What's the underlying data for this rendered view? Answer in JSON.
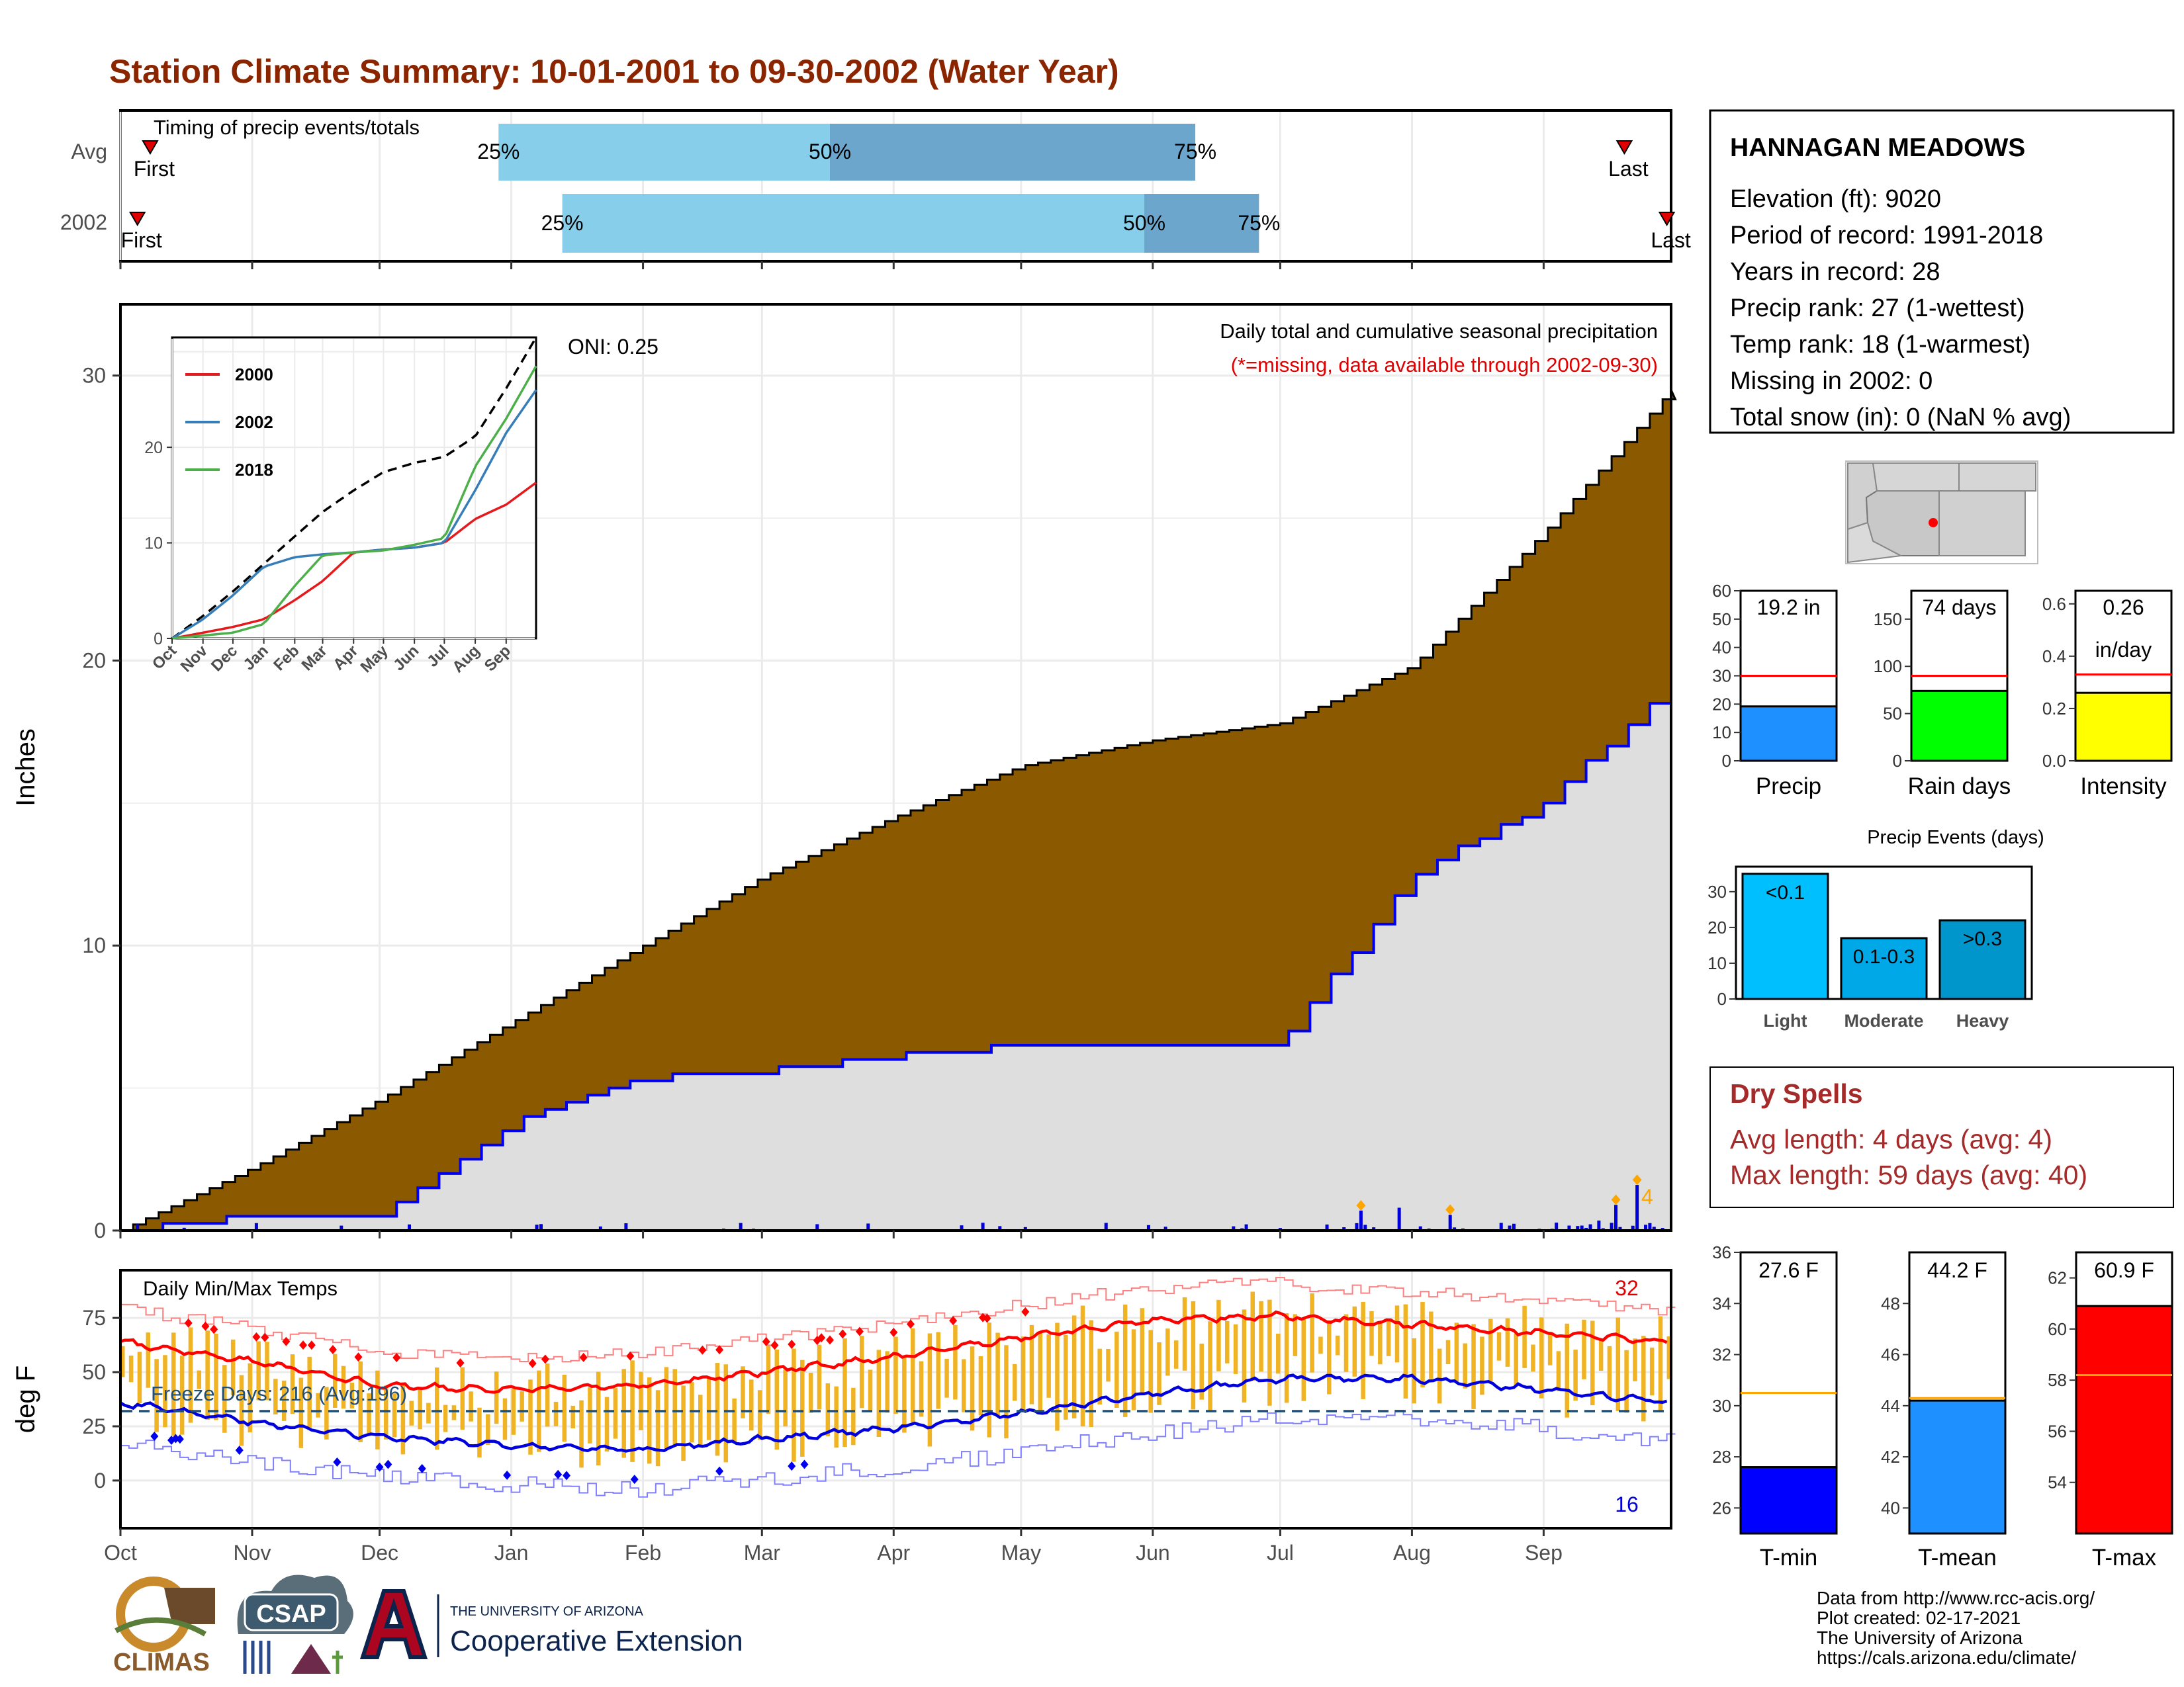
{
  "title": "Station Climate Summary: 10-01-2001 to 09-30-2002 (Water Year)",
  "colors": {
    "title": "#8B2500",
    "cumulative_fill": "#8B5A00",
    "avg_fill": "#DEDEDE",
    "blue_line": "#0000EE",
    "timing_light": "#87CEEB",
    "timing_dark": "#6CA6CD",
    "temp_bar": "#F0B323",
    "dry_spell_text": "#A52A2A"
  },
  "timing": {
    "title": "Timing of precip events/totals",
    "rows": [
      {
        "label": "Avg",
        "first_label": "First",
        "last_label": "Last",
        "first": 7,
        "p25": 89,
        "p50": 167,
        "p75": 253,
        "last": 354
      },
      {
        "label": "2002",
        "first_label": "First",
        "last_label": "Last",
        "first": 4,
        "p25": 104,
        "p50": 241,
        "p75": 268,
        "last": 364
      }
    ],
    "pct_labels": [
      "25%",
      "50%",
      "75%"
    ]
  },
  "precip_panel": {
    "ylabel": "Inches",
    "subtitle": "Daily total and cumulative seasonal precipitation",
    "missing_note": "(*=missing, data available through 2002-09-30)",
    "oni_label": "ONI: 0.25",
    "event_count_label": "4",
    "y_ticks": [
      "0",
      "10",
      "20",
      "30"
    ]
  },
  "inset": {
    "legend": [
      "2000",
      "2002",
      "2018"
    ],
    "legend_colors": [
      "#E41A1C",
      "#377EB8",
      "#4DAF4A"
    ],
    "y_ticks": [
      "0",
      "10",
      "20"
    ],
    "months": [
      "Oct",
      "Nov",
      "Dec",
      "Jan",
      "Feb",
      "Mar",
      "Apr",
      "May",
      "Jun",
      "Jul",
      "Aug",
      "Sep"
    ]
  },
  "temp_panel": {
    "title": "Daily Min/Max Temps",
    "ylabel": "deg F",
    "freeze_label": "Freeze Days: 216 (Avg:196)",
    "count_hot": "32",
    "count_cold": "16",
    "y_ticks": [
      "0",
      "25",
      "50",
      "75"
    ]
  },
  "months": [
    "Oct",
    "Nov",
    "Dec",
    "Jan",
    "Feb",
    "Mar",
    "Apr",
    "May",
    "Jun",
    "Jul",
    "Aug",
    "Sep"
  ],
  "station": {
    "name": "HANNAGAN MEADOWS",
    "lines": [
      "Elevation (ft): 9020",
      "Period of record: 1991-2018",
      "Years in record: 28",
      "Precip rank: 27 (1-wettest)",
      "Temp rank: 18 (1-warmest)",
      "Missing in 2002: 0",
      "Total snow (in): 0 (NaN % avg)"
    ]
  },
  "mini_bars": [
    {
      "label": "Precip",
      "value_text": "19.2 in",
      "value": 19.2,
      "avg": 30,
      "ymax": 60,
      "ticks": [
        "0",
        "10",
        "20",
        "30",
        "40",
        "50",
        "60"
      ],
      "color": "#1E90FF"
    },
    {
      "label": "Rain days",
      "value_text": "74 days",
      "value": 74,
      "avg": 90,
      "ymax": 180,
      "ticks": [
        "0",
        "50",
        "100",
        "150"
      ],
      "color": "#00FF00"
    },
    {
      "label": "Intensity",
      "value_text": "0.26",
      "value_text2": "in/day",
      "value": 0.26,
      "avg": 0.33,
      "ymax": 0.65,
      "ticks": [
        "0.0",
        "0.2",
        "0.4",
        "0.6"
      ],
      "color": "#FFFF00"
    }
  ],
  "events": {
    "title": "Precip Events (days)",
    "ticks": [
      "0",
      "10",
      "20",
      "30"
    ],
    "bars": [
      {
        "label": "Light",
        "tag": "<0.1",
        "value": 35,
        "color": "#00BFFF"
      },
      {
        "label": "Moderate",
        "tag": "0.1-0.3",
        "value": 17,
        "color": "#00A8E8"
      },
      {
        "label": "Heavy",
        "tag": ">0.3",
        "value": 22,
        "color": "#0096CC"
      }
    ]
  },
  "dry_spells": {
    "title": "Dry Spells",
    "avg_line": "Avg length: 4 days (avg: 4)",
    "max_line": "Max length: 59 days (avg: 40)"
  },
  "temp_bars": [
    {
      "label": "T-min",
      "value_text": "27.6 F",
      "value": 27.6,
      "avg": 30.5,
      "ymin": 25,
      "ymax": 36,
      "ticks": [
        "26",
        "28",
        "30",
        "32",
        "34",
        "36"
      ],
      "color": "#0000FF"
    },
    {
      "label": "T-mean",
      "value_text": "44.2 F",
      "value": 44.2,
      "avg": 44.3,
      "ymin": 39,
      "ymax": 50,
      "ticks": [
        "40",
        "42",
        "44",
        "46",
        "48"
      ],
      "color": "#1E90FF"
    },
    {
      "label": "T-max",
      "value_text": "60.9 F",
      "value": 60.9,
      "avg": 58.2,
      "ymin": 52,
      "ymax": 63,
      "ticks": [
        "54",
        "56",
        "58",
        "60",
        "62"
      ],
      "color": "#FF0000"
    }
  ],
  "credits": [
    "Data from http://www.rcc-acis.org/",
    "Plot created: 02-17-2021",
    "The University of Arizona",
    "https://cals.arizona.edu/climate/"
  ],
  "logos": {
    "climas": "CLIMAS",
    "csap": "CSAP",
    "ua_small": "THE UNIVERSITY OF ARIZONA",
    "coop": "Cooperative Extension"
  },
  "chart_data": [
    {
      "type": "area",
      "title": "Daily total and cumulative seasonal precipitation",
      "ylabel": "Inches",
      "ylim": [
        0,
        32.5
      ],
      "x": [
        "Oct",
        "Nov",
        "Dec",
        "Jan",
        "Feb",
        "Mar",
        "Apr",
        "May",
        "Jun",
        "Jul",
        "Aug",
        "Sep",
        "end"
      ],
      "series": [
        {
          "name": "avg cumulative",
          "values": [
            0,
            2.2,
            4.6,
            7.3,
            10.0,
            12.4,
            14.5,
            16.3,
            17.2,
            17.8,
            19.8,
            24.5,
            29.5
          ]
        },
        {
          "name": "2002 cumulative",
          "values": [
            0,
            0.5,
            0.6,
            3.8,
            5.3,
            5.6,
            6.1,
            6.5,
            6.5,
            6.6,
            12.5,
            15.0,
            19.2
          ]
        }
      ]
    },
    {
      "type": "line",
      "title": "Daily Min/Max Temps",
      "ylabel": "deg F",
      "x": [
        "Oct",
        "Nov",
        "Dec",
        "Jan",
        "Feb",
        "Mar",
        "Apr",
        "May",
        "Jun",
        "Jul",
        "Aug",
        "Sep"
      ],
      "series": [
        {
          "name": "avg max",
          "values": [
            64,
            55,
            44,
            42,
            44,
            50,
            57,
            66,
            74,
            76,
            72,
            68
          ]
        },
        {
          "name": "avg min",
          "values": [
            36,
            27,
            20,
            16,
            14,
            19,
            24,
            31,
            40,
            47,
            47,
            42
          ]
        }
      ]
    }
  ]
}
